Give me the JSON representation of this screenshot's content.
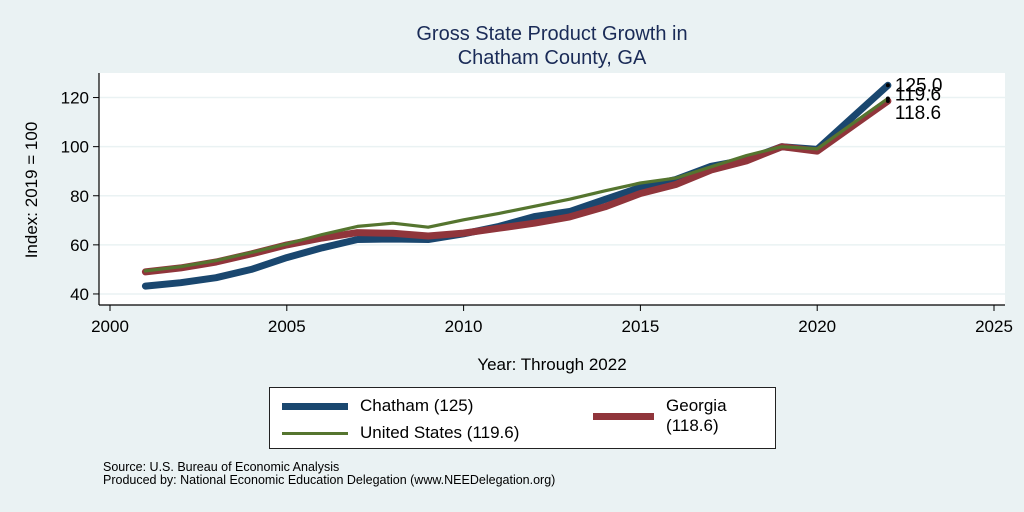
{
  "chart_data": {
    "type": "line",
    "title": [
      "Gross State Product Growth in",
      "Chatham County, GA"
    ],
    "xlabel": "Year: Through 2022",
    "ylabel": "Index: 2019 = 100",
    "xlim": [
      2000,
      2025
    ],
    "ylim": [
      35.5,
      130
    ],
    "xticks": [
      2000,
      2005,
      2010,
      2015,
      2020,
      2025
    ],
    "yticks": [
      40,
      60,
      80,
      100,
      120
    ],
    "grid": "horizontal",
    "x": [
      2001,
      2002,
      2003,
      2004,
      2005,
      2006,
      2007,
      2008,
      2009,
      2010,
      2011,
      2012,
      2013,
      2014,
      2015,
      2016,
      2017,
      2018,
      2019,
      2020,
      2021,
      2022
    ],
    "series": [
      {
        "name": "Chatham",
        "color": "#1a476f",
        "values": [
          43.2,
          44.6,
          46.6,
          50.0,
          54.8,
          58.8,
          62.2,
          62.4,
          62.2,
          64.5,
          67.5,
          71.5,
          73.6,
          78.5,
          83.4,
          86.6,
          92.0,
          94.7,
          100.0,
          98.9,
          112.0,
          125.0
        ],
        "end_label": "125.0"
      },
      {
        "name": "Georgia",
        "color": "#90353b",
        "values": [
          49.0,
          50.6,
          53.0,
          56.3,
          60.0,
          62.8,
          65.0,
          64.7,
          63.6,
          64.8,
          66.8,
          68.8,
          71.4,
          75.5,
          80.9,
          84.6,
          90.5,
          94.2,
          100.0,
          98.2,
          108.4,
          118.6
        ],
        "end_label": "118.6"
      },
      {
        "name": "United States",
        "color": "#55752f",
        "values": [
          49.4,
          51.1,
          53.6,
          56.9,
          60.4,
          64.2,
          67.5,
          68.8,
          67.2,
          70.2,
          72.8,
          75.7,
          78.6,
          82.0,
          85.2,
          87.2,
          91.8,
          96.4,
          100.0,
          99.1,
          109.4,
          119.6
        ],
        "end_label": "119.6"
      }
    ],
    "legend": {
      "placement": "bottom",
      "entries": [
        {
          "label": "Chatham  (125)",
          "color": "#1a476f",
          "weight": "thick"
        },
        {
          "label": "Georgia (118.6)",
          "color": "#90353b",
          "weight": "thick"
        },
        {
          "label": "United States (119.6)",
          "color": "#55752f",
          "weight": "thin"
        }
      ]
    }
  },
  "footnotes": {
    "source": "Source: U.S. Bureau of Economic Analysis",
    "produced_by": "Produced by: National Economic Education Delegation (www.NEEDelegation.org)"
  }
}
